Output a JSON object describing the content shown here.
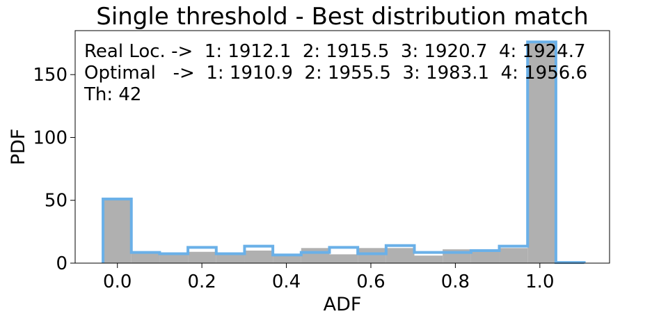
{
  "chart_data": {
    "type": "histogram",
    "title": "Single threshold - Best distribution match",
    "xlabel": "ADF",
    "ylabel": "PDF",
    "xlim": [
      -0.1,
      1.165
    ],
    "ylim": [
      0,
      185
    ],
    "xticks": [
      0.0,
      0.2,
      0.4,
      0.6,
      0.8,
      1.0
    ],
    "xtick_labels": [
      "0.0",
      "0.2",
      "0.4",
      "0.6",
      "0.8",
      "1.0"
    ],
    "yticks": [
      0,
      50,
      100,
      150
    ],
    "ytick_labels": [
      "0",
      "50",
      "100",
      "150"
    ],
    "bin_edges": [
      -0.034,
      0.033,
      0.1,
      0.167,
      0.234,
      0.301,
      0.368,
      0.435,
      0.502,
      0.569,
      0.636,
      0.703,
      0.77,
      0.837,
      0.904,
      0.971,
      1.038,
      1.105
    ],
    "series": [
      {
        "values": [
          50.5,
          8.5,
          7.5,
          9.0,
          7.5,
          10.0,
          7.0,
          12.0,
          7.0,
          12.0,
          12.0,
          6.0,
          11.0,
          10.0,
          12.0,
          175.0,
          0.0
        ],
        "color": "#b0b0b0",
        "style": "filled"
      },
      {
        "values": [
          51.0,
          8.5,
          7.5,
          12.5,
          7.5,
          13.5,
          6.5,
          8.5,
          12.5,
          7.5,
          14.0,
          8.5,
          8.5,
          10.0,
          13.5,
          176.0,
          0.5
        ],
        "color": "#6ab0e8",
        "style": "step"
      }
    ],
    "annotation_lines": [
      "Real Loc. ->  1: 1912.1  2: 1915.5  3: 1920.7  4: 1924.7",
      "Optimal   ->  1: 1910.9  2: 1955.5  3: 1983.1  4: 1956.6",
      "Th: 42"
    ],
    "grid": false,
    "legend": "none"
  }
}
